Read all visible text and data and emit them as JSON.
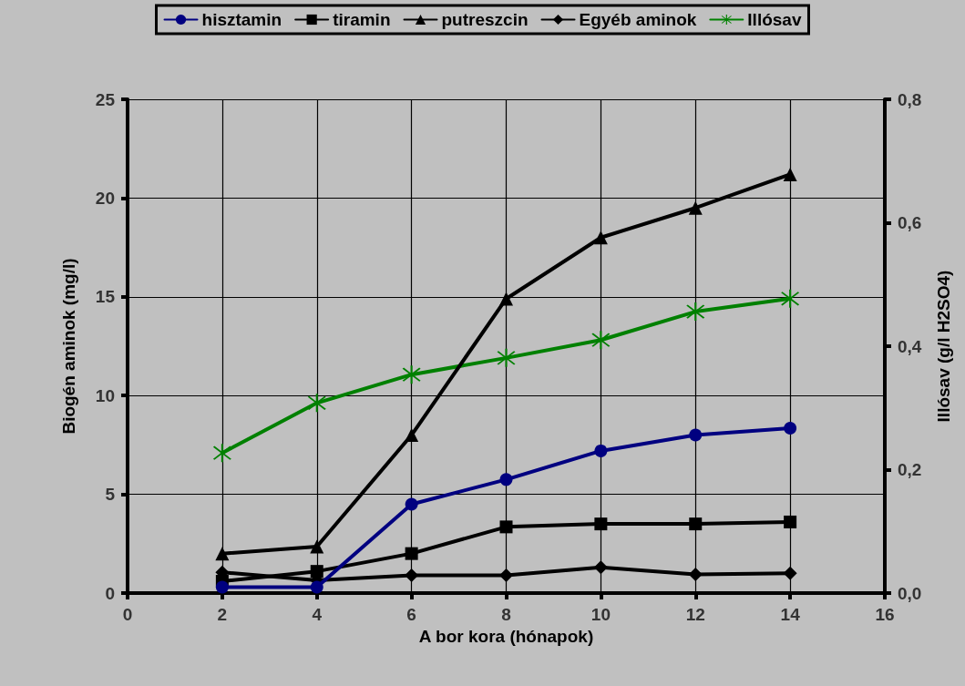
{
  "chart_data": {
    "type": "line",
    "xlabel": "A bor kora (hónapok)",
    "ylabel": "Biogén aminok (mg/l)",
    "y2label": "Illósav (g/l H2SO4)",
    "x": [
      2,
      4,
      6,
      8,
      10,
      12,
      14
    ],
    "series": [
      {
        "name": "hisztamin",
        "color": "#000080",
        "marker": "circle",
        "values": [
          0.3,
          0.3,
          4.5,
          5.75,
          7.2,
          8.0,
          8.35
        ]
      },
      {
        "name": "tiramin",
        "color": "#000000",
        "marker": "square",
        "values": [
          0.6,
          1.1,
          2.0,
          3.35,
          3.5,
          3.5,
          3.6
        ]
      },
      {
        "name": "putreszcin",
        "color": "#000000",
        "marker": "triangle",
        "values": [
          2.0,
          2.35,
          8.0,
          14.9,
          18.0,
          19.5,
          21.2
        ]
      },
      {
        "name": "Egyéb aminok",
        "color": "#000000",
        "marker": "diamond",
        "values": [
          1.05,
          0.65,
          0.9,
          0.9,
          1.3,
          0.95,
          1.0
        ]
      },
      {
        "name": "Illósav",
        "color": "#008000",
        "marker": "cross",
        "axis": "y2",
        "values": [
          0.227,
          0.308,
          0.354,
          0.381,
          0.41,
          0.456,
          0.477
        ]
      }
    ],
    "xlim": [
      0,
      16
    ],
    "xticks": [
      0,
      2,
      4,
      6,
      8,
      10,
      12,
      14,
      16
    ],
    "ylim": [
      0,
      25
    ],
    "yticks": [
      0,
      5,
      10,
      15,
      20,
      25
    ],
    "y2lim": [
      0,
      0.8
    ],
    "y2ticks": [
      {
        "value": 0,
        "label": "0,0"
      },
      {
        "value": 0.2,
        "label": "0,2"
      },
      {
        "value": 0.4,
        "label": "0,4"
      },
      {
        "value": 0.6,
        "label": "0,6"
      },
      {
        "value": 0.8,
        "label": "0,8"
      }
    ],
    "grid": true,
    "legend": "top",
    "line_style": "solid"
  }
}
